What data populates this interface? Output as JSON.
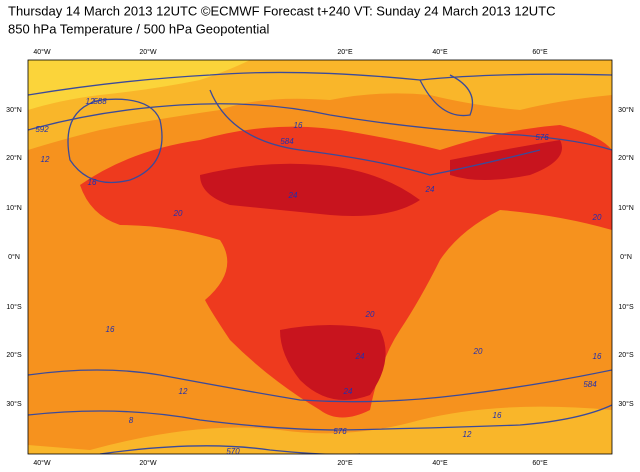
{
  "header": {
    "title": "Thursday 14 March 2013 12UTC ©ECMWF Forecast t+240 VT: Sunday 24 March 2013 12UTC",
    "subtitle": "850 hPa Temperature / 500 hPa Geopotential"
  },
  "map": {
    "lon_labels_top": [
      "40°W",
      "20°W",
      "20°E",
      "40°E",
      "60°E"
    ],
    "lon_labels_bottom": [
      "40°W",
      "20°W",
      "20°E",
      "40°E",
      "60°E"
    ],
    "lat_labels_left": [
      "30°N",
      "20°N",
      "10°N",
      "0°N",
      "10°S",
      "20°S",
      "30°S"
    ],
    "lat_labels_right": [
      "30°N",
      "20°N",
      "10°N",
      "0°N",
      "10°S",
      "20°S",
      "30°S"
    ],
    "contour_labels": [
      "12",
      "16",
      "20",
      "24",
      "24",
      "20",
      "16",
      "20",
      "24",
      "24",
      "20",
      "16",
      "16",
      "12",
      "12",
      "16",
      "12",
      "8",
      "588",
      "592",
      "584",
      "576",
      "570",
      "576",
      "584"
    ]
  }
}
